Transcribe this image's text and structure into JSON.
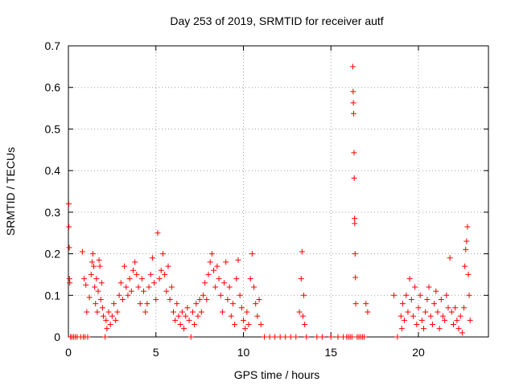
{
  "chart_data": {
    "type": "scatter",
    "title": "Day 253 of 2019, SRMTID for receiver autf",
    "xlabel": "GPS time / hours",
    "ylabel": "SRMTID / TECUs",
    "xlim": [
      0,
      24
    ],
    "ylim": [
      0,
      0.7
    ],
    "xticks": [
      0,
      5,
      10,
      15,
      20
    ],
    "xtick_labels": [
      "0",
      "5",
      "10",
      "15",
      "20"
    ],
    "yticks": [
      0,
      0.1,
      0.2,
      0.3,
      0.4,
      0.5,
      0.6,
      0.7
    ],
    "ytick_labels": [
      "0",
      "0.1",
      "0.2",
      "0.3",
      "0.4",
      "0.5",
      "0.6",
      "0.7"
    ],
    "grid": true,
    "marker": "+",
    "color": "#ff0000",
    "series": [
      {
        "name": "SRMTID",
        "points": [
          [
            0.02,
            0.32
          ],
          [
            0.03,
            0.265
          ],
          [
            0.05,
            0.215
          ],
          [
            0.06,
            0.14
          ],
          [
            0.08,
            0.13
          ],
          [
            0.12,
            0.0
          ],
          [
            0.2,
            0.0
          ],
          [
            0.3,
            0.0
          ],
          [
            0.4,
            0.0
          ],
          [
            0.5,
            0.0
          ],
          [
            0.7,
            0.0
          ],
          [
            0.8,
            0.205
          ],
          [
            0.85,
            0.0
          ],
          [
            0.9,
            0.14
          ],
          [
            0.95,
            0.0
          ],
          [
            1.0,
            0.125
          ],
          [
            1.05,
            0.06
          ],
          [
            1.1,
            0.0
          ],
          [
            1.2,
            0.095
          ],
          [
            1.3,
            0.15
          ],
          [
            1.35,
            0.18
          ],
          [
            1.4,
            0.2
          ],
          [
            1.45,
            0.17
          ],
          [
            1.5,
            0.12
          ],
          [
            1.55,
            0.08
          ],
          [
            1.6,
            0.14
          ],
          [
            1.65,
            0.06
          ],
          [
            1.7,
            0.11
          ],
          [
            1.75,
            0.185
          ],
          [
            1.8,
            0.17
          ],
          [
            1.85,
            0.09
          ],
          [
            1.9,
            0.13
          ],
          [
            1.95,
            0.07
          ],
          [
            2.0,
            0.05
          ],
          [
            2.1,
            0.0
          ],
          [
            2.15,
            0.04
          ],
          [
            2.2,
            0.02
          ],
          [
            2.3,
            0.06
          ],
          [
            2.4,
            0.03
          ],
          [
            2.5,
            0.05
          ],
          [
            2.6,
            0.08
          ],
          [
            2.7,
            0.04
          ],
          [
            2.8,
            0.06
          ],
          [
            2.9,
            0.1
          ],
          [
            3.0,
            0.13
          ],
          [
            3.1,
            0.09
          ],
          [
            3.2,
            0.17
          ],
          [
            3.3,
            0.12
          ],
          [
            3.4,
            0.1
          ],
          [
            3.5,
            0.14
          ],
          [
            3.6,
            0.11
          ],
          [
            3.7,
            0.16
          ],
          [
            3.8,
            0.18
          ],
          [
            3.9,
            0.15
          ],
          [
            4.0,
            0.12
          ],
          [
            4.1,
            0.08
          ],
          [
            4.2,
            0.14
          ],
          [
            4.3,
            0.11
          ],
          [
            4.4,
            0.06
          ],
          [
            4.5,
            0.08
          ],
          [
            4.6,
            0.12
          ],
          [
            4.7,
            0.15
          ],
          [
            4.8,
            0.19
          ],
          [
            4.9,
            0.13
          ],
          [
            5.0,
            0.09
          ],
          [
            5.1,
            0.25
          ],
          [
            5.2,
            0.14
          ],
          [
            5.3,
            0.16
          ],
          [
            5.4,
            0.2
          ],
          [
            5.5,
            0.15
          ],
          [
            5.6,
            0.11
          ],
          [
            5.7,
            0.17
          ],
          [
            5.8,
            0.09
          ],
          [
            5.9,
            0.12
          ],
          [
            6.0,
            0.06
          ],
          [
            6.1,
            0.04
          ],
          [
            6.2,
            0.08
          ],
          [
            6.3,
            0.05
          ],
          [
            6.4,
            0.03
          ],
          [
            6.5,
            0.06
          ],
          [
            6.6,
            0.02
          ],
          [
            6.7,
            0.05
          ],
          [
            6.8,
            0.07
          ],
          [
            6.9,
            0.04
          ],
          [
            7.0,
            0.0
          ],
          [
            7.1,
            0.06
          ],
          [
            7.2,
            0.03
          ],
          [
            7.3,
            0.08
          ],
          [
            7.4,
            0.05
          ],
          [
            7.5,
            0.09
          ],
          [
            7.6,
            0.06
          ],
          [
            7.7,
            0.1
          ],
          [
            7.8,
            0.13
          ],
          [
            7.9,
            0.09
          ],
          [
            8.0,
            0.15
          ],
          [
            8.1,
            0.18
          ],
          [
            8.2,
            0.2
          ],
          [
            8.3,
            0.16
          ],
          [
            8.4,
            0.12
          ],
          [
            8.5,
            0.17
          ],
          [
            8.6,
            0.14
          ],
          [
            8.7,
            0.1
          ],
          [
            8.8,
            0.06
          ],
          [
            8.9,
            0.13
          ],
          [
            9.0,
            0.18
          ],
          [
            9.1,
            0.09
          ],
          [
            9.2,
            0.12
          ],
          [
            9.3,
            0.05
          ],
          [
            9.4,
            0.08
          ],
          [
            9.5,
            0.03
          ],
          [
            9.6,
            0.14
          ],
          [
            9.7,
            0.185
          ],
          [
            9.8,
            0.1
          ],
          [
            9.9,
            0.07
          ],
          [
            10.0,
            0.04
          ],
          [
            10.1,
            0.02
          ],
          [
            10.2,
            0.06
          ],
          [
            10.3,
            0.03
          ],
          [
            10.4,
            0.14
          ],
          [
            10.5,
            0.2
          ],
          [
            10.6,
            0.12
          ],
          [
            10.7,
            0.08
          ],
          [
            10.8,
            0.05
          ],
          [
            10.9,
            0.09
          ],
          [
            11.0,
            0.03
          ],
          [
            11.2,
            0.0
          ],
          [
            11.5,
            0.0
          ],
          [
            11.8,
            0.0
          ],
          [
            12.1,
            0.0
          ],
          [
            12.4,
            0.0
          ],
          [
            12.7,
            0.0
          ],
          [
            13.0,
            0.0
          ],
          [
            13.2,
            0.06
          ],
          [
            13.3,
            0.14
          ],
          [
            13.35,
            0.205
          ],
          [
            13.4,
            0.05
          ],
          [
            13.45,
            0.1
          ],
          [
            13.5,
            0.03
          ],
          [
            13.6,
            0.0
          ],
          [
            14.2,
            0.0
          ],
          [
            14.5,
            0.0
          ],
          [
            15.0,
            0.0
          ],
          [
            15.4,
            0.0
          ],
          [
            15.7,
            0.0
          ],
          [
            15.9,
            0.0
          ],
          [
            16.0,
            0.0
          ],
          [
            16.1,
            0.0
          ],
          [
            16.2,
            0.0
          ],
          [
            16.25,
            0.65
          ],
          [
            16.27,
            0.59
          ],
          [
            16.28,
            0.563
          ],
          [
            16.3,
            0.537
          ],
          [
            16.32,
            0.443
          ],
          [
            16.33,
            0.382
          ],
          [
            16.35,
            0.285
          ],
          [
            16.36,
            0.273
          ],
          [
            16.38,
            0.2
          ],
          [
            16.4,
            0.143
          ],
          [
            16.42,
            0.08
          ],
          [
            16.5,
            0.0
          ],
          [
            16.6,
            0.0
          ],
          [
            16.7,
            0.0
          ],
          [
            16.8,
            0.0
          ],
          [
            16.9,
            0.0
          ],
          [
            17.0,
            0.08
          ],
          [
            17.1,
            0.06
          ],
          [
            18.6,
            0.1
          ],
          [
            18.8,
            0.0
          ],
          [
            19.0,
            0.05
          ],
          [
            19.05,
            0.02
          ],
          [
            19.1,
            0.08
          ],
          [
            19.2,
            0.04
          ],
          [
            19.3,
            0.1
          ],
          [
            19.4,
            0.06
          ],
          [
            19.5,
            0.14
          ],
          [
            19.6,
            0.09
          ],
          [
            19.7,
            0.05
          ],
          [
            19.8,
            0.12
          ],
          [
            19.9,
            0.03
          ],
          [
            20.0,
            0.07
          ],
          [
            20.1,
            0.1
          ],
          [
            20.2,
            0.04
          ],
          [
            20.3,
            0.02
          ],
          [
            20.4,
            0.06
          ],
          [
            20.5,
            0.09
          ],
          [
            20.6,
            0.12
          ],
          [
            20.7,
            0.05
          ],
          [
            20.8,
            0.03
          ],
          [
            20.9,
            0.08
          ],
          [
            21.0,
            0.11
          ],
          [
            21.1,
            0.06
          ],
          [
            21.2,
            0.02
          ],
          [
            21.3,
            0.09
          ],
          [
            21.4,
            0.05
          ],
          [
            21.5,
            0.04
          ],
          [
            21.6,
            0.1
          ],
          [
            21.7,
            0.07
          ],
          [
            21.8,
            0.19
          ],
          [
            21.9,
            0.06
          ],
          [
            22.0,
            0.03
          ],
          [
            22.1,
            0.07
          ],
          [
            22.2,
            0.04
          ],
          [
            22.3,
            0.02
          ],
          [
            22.4,
            0.05
          ],
          [
            22.5,
            0.01
          ],
          [
            22.6,
            0.07
          ],
          [
            22.65,
            0.17
          ],
          [
            22.7,
            0.21
          ],
          [
            22.75,
            0.23
          ],
          [
            22.8,
            0.265
          ],
          [
            22.85,
            0.15
          ],
          [
            22.9,
            0.1
          ],
          [
            22.95,
            0.04
          ]
        ]
      }
    ]
  }
}
